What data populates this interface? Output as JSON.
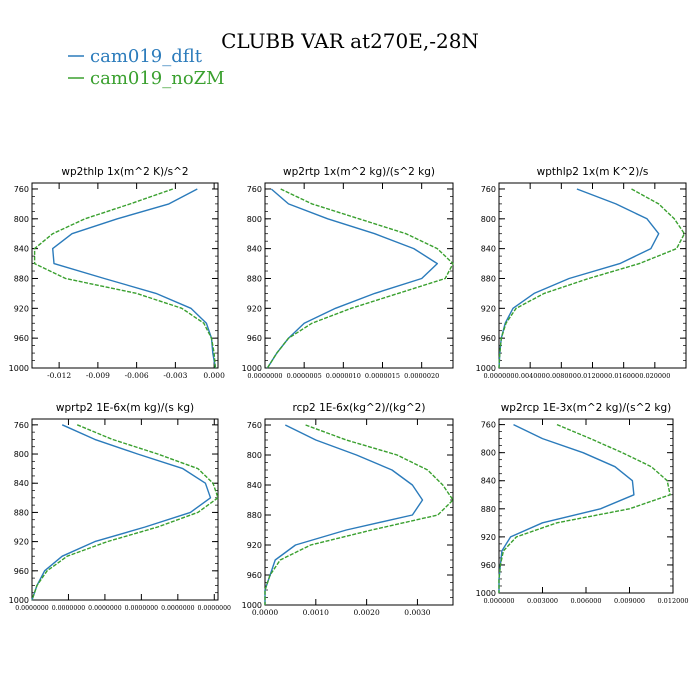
{
  "title": "CLUBB VAR at270E,-28N",
  "legend": [
    {
      "name": "cam019_dflt",
      "color": "#2b7bbb"
    },
    {
      "name": "cam019_noZM",
      "color": "#3aa02f"
    }
  ],
  "chart_data": [
    {
      "type": "line",
      "title": "wp2thlp  1x(m^2 K)/s^2",
      "yticks": [
        "760",
        "800",
        "840",
        "880",
        "920",
        "960",
        "1000"
      ],
      "xticks": [
        "-0.012",
        "-0.009",
        "-0.006",
        "-0.003",
        "0.000"
      ],
      "xlim": [
        -0.0141,
        0.0003
      ],
      "ylim": [
        1000,
        752
      ],
      "y": [
        760,
        780,
        800,
        820,
        840,
        860,
        880,
        900,
        920,
        940,
        960,
        980,
        1000
      ],
      "series": [
        {
          "name": "cam019_dflt",
          "values": [
            -0.0013,
            -0.0035,
            -0.0075,
            -0.011,
            -0.0125,
            -0.0124,
            -0.0085,
            -0.0045,
            -0.0018,
            -0.0006,
            -0.0002,
            -0.0001,
            0.0001
          ]
        },
        {
          "name": "cam019_noZM",
          "values": [
            -0.0032,
            -0.0065,
            -0.01,
            -0.0125,
            -0.0139,
            -0.0139,
            -0.0115,
            -0.006,
            -0.0025,
            -0.0008,
            -0.0002,
            0.0,
            0.0001
          ]
        }
      ]
    },
    {
      "type": "line",
      "title": "wp2rtp  1x(m^2 kg)/(s^2 kg)",
      "yticks": [
        "760",
        "800",
        "840",
        "880",
        "920",
        "960",
        "1000"
      ],
      "xticks": [
        "0.0000000",
        "0.0000005",
        "0.0000010",
        "0.0000015",
        "0.0000020"
      ],
      "xlim": [
        0,
        2.4e-06
      ],
      "ylim": [
        1000,
        752
      ],
      "y": [
        760,
        780,
        800,
        820,
        840,
        860,
        880,
        900,
        920,
        940,
        960,
        980,
        1000
      ],
      "series": [
        {
          "name": "cam019_dflt",
          "values": [
            8e-08,
            3e-07,
            8e-07,
            1.4e-06,
            1.9e-06,
            2.2e-06,
            2e-06,
            1.4e-06,
            9e-07,
            5e-07,
            3e-07,
            1.5e-07,
            3e-08
          ]
        },
        {
          "name": "cam019_noZM",
          "values": [
            2e-07,
            6e-07,
            1.2e-06,
            1.8e-06,
            2.2e-06,
            2.4e-06,
            2.3e-06,
            1.7e-06,
            1.1e-06,
            6e-07,
            3e-07,
            1.5e-07,
            3e-08
          ]
        }
      ]
    },
    {
      "type": "line",
      "title": "wpthlp2  1x(m K^2)/s",
      "yticks": [
        "760",
        "800",
        "840",
        "880",
        "920",
        "960",
        "1000"
      ],
      "xticks": [
        "0.000000",
        "0.004000",
        "0.008000",
        "0.012000",
        "0.016000",
        "0.020000"
      ],
      "xlim": [
        0,
        0.024
      ],
      "ylim": [
        1000,
        752
      ],
      "y": [
        760,
        780,
        800,
        820,
        840,
        860,
        880,
        900,
        920,
        940,
        960,
        980,
        1000
      ],
      "series": [
        {
          "name": "cam019_dflt",
          "values": [
            0.01,
            0.015,
            0.019,
            0.0205,
            0.0195,
            0.0155,
            0.009,
            0.0045,
            0.0018,
            0.0008,
            0.0003,
            0.0001,
            0.0
          ]
        },
        {
          "name": "cam019_noZM",
          "values": [
            0.017,
            0.0205,
            0.0225,
            0.0238,
            0.0228,
            0.018,
            0.0115,
            0.0058,
            0.0022,
            0.0009,
            0.0003,
            0.0001,
            0.0
          ]
        }
      ]
    },
    {
      "type": "line",
      "title": "wprtp2  1E-6x(m kg)/(s kg)",
      "yticks": [
        "760",
        "800",
        "840",
        "880",
        "920",
        "960",
        "1000"
      ],
      "xticks": [
        "0.0000000",
        "0.0000000",
        "0.0000000",
        "0.0000000",
        "0.0000000",
        "0.0000000"
      ],
      "xlim": [
        0,
        7.4e-06
      ],
      "ylim": [
        1000,
        752
      ],
      "y": [
        760,
        780,
        800,
        820,
        840,
        860,
        880,
        900,
        920,
        940,
        960,
        980,
        1000
      ],
      "series": [
        {
          "name": "cam019_dflt",
          "values": [
            1.2e-06,
            2.5e-06,
            4.2e-06,
            6e-06,
            6.9e-06,
            7.1e-06,
            6.3e-06,
            4.5e-06,
            2.5e-06,
            1.2e-06,
            5e-07,
            2e-07,
            0.0
          ]
        },
        {
          "name": "cam019_noZM",
          "values": [
            1.8e-06,
            3.2e-06,
            5e-06,
            6.6e-06,
            7.2e-06,
            7.4e-06,
            6.6e-06,
            5e-06,
            3e-06,
            1.4e-06,
            6e-07,
            2e-07,
            0.0
          ]
        }
      ]
    },
    {
      "type": "line",
      "title": "rcp2  1E-6x(kg^2)/(kg^2)",
      "yticks": [
        "760",
        "800",
        "840",
        "880",
        "920",
        "960",
        "1000"
      ],
      "xticks": [
        "0.0000",
        "0.0010",
        "0.0020",
        "0.0030"
      ],
      "xlim": [
        0,
        0.0037
      ],
      "ylim": [
        1000,
        752
      ],
      "y": [
        760,
        780,
        800,
        820,
        840,
        860,
        880,
        900,
        920,
        940,
        960,
        980,
        1000
      ],
      "series": [
        {
          "name": "cam019_dflt",
          "values": [
            0.0004,
            0.001,
            0.0018,
            0.0025,
            0.0029,
            0.0031,
            0.0029,
            0.0016,
            0.0006,
            0.0002,
            0.0001,
            0.0,
            0.0
          ]
        },
        {
          "name": "cam019_noZM",
          "values": [
            0.0008,
            0.0016,
            0.0026,
            0.0032,
            0.0035,
            0.0037,
            0.0034,
            0.0021,
            0.0009,
            0.0003,
            0.0001,
            0.0,
            0.0
          ]
        }
      ]
    },
    {
      "type": "line",
      "title": "wp2rcp  1E-3x(m^2 kg)/(s^2 kg)",
      "yticks": [
        "760",
        "800",
        "840",
        "880",
        "920",
        "960",
        "1000"
      ],
      "xticks": [
        "0.000000",
        "0.003000",
        "0.006000",
        "0.009000",
        "0.012000"
      ],
      "xlim": [
        0,
        0.012
      ],
      "ylim": [
        1000,
        752
      ],
      "y": [
        760,
        780,
        800,
        820,
        840,
        860,
        880,
        900,
        920,
        940,
        960,
        980,
        1000
      ],
      "series": [
        {
          "name": "cam019_dflt",
          "values": [
            0.001,
            0.003,
            0.0058,
            0.008,
            0.0092,
            0.0093,
            0.007,
            0.003,
            0.0008,
            0.0002,
            0.0001,
            0.0,
            0.0
          ]
        },
        {
          "name": "cam019_noZM",
          "values": [
            0.004,
            0.0063,
            0.0085,
            0.0105,
            0.0116,
            0.0118,
            0.009,
            0.004,
            0.0012,
            0.0003,
            0.0001,
            0.0,
            0.0
          ]
        }
      ]
    }
  ]
}
